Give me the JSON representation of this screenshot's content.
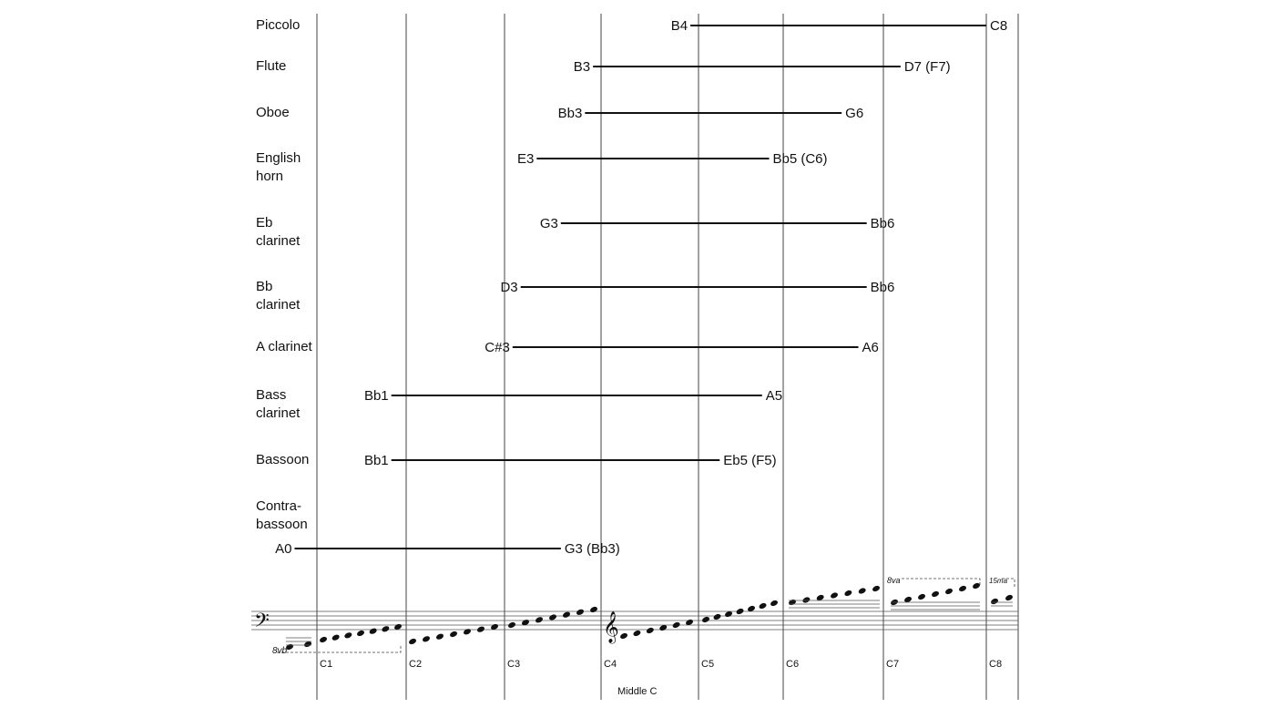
{
  "instruments": [
    {
      "name_lines": [
        "Piccolo"
      ],
      "low": "B4",
      "high": "C8"
    },
    {
      "name_lines": [
        "Flute"
      ],
      "low": "B3",
      "high": "D7 (F7)"
    },
    {
      "name_lines": [
        "Oboe"
      ],
      "low": "Bb3",
      "high": "G6"
    },
    {
      "name_lines": [
        "English",
        "horn"
      ],
      "low": "E3",
      "high": "Bb5 (C6)"
    },
    {
      "name_lines": [
        "Eb",
        "clarinet"
      ],
      "low": "G3",
      "high": "Bb6"
    },
    {
      "name_lines": [
        "Bb",
        "clarinet"
      ],
      "low": "D3",
      "high": "Bb6"
    },
    {
      "name_lines": [
        "A clarinet"
      ],
      "low": "C#3",
      "high": "A6"
    },
    {
      "name_lines": [
        "Bass",
        "clarinet"
      ],
      "low": "Bb1",
      "high": "A5"
    },
    {
      "name_lines": [
        "Bassoon"
      ],
      "low": "Bb1",
      "high": "Eb5 (F5)"
    },
    {
      "name_lines": [
        "Contra-",
        "bassoon"
      ],
      "low": "A0",
      "high": "G3 (Bb3)"
    }
  ],
  "octave_markers": [
    "C1",
    "C2",
    "C3",
    "C4",
    "C5",
    "C6",
    "C7",
    "C8"
  ],
  "middle_c_label": "Middle C",
  "ottava_marks": {
    "bass_8vb": "8vb",
    "treble_8va": "8va",
    "treble_15ma": "15ma"
  },
  "clefs": {
    "bass": "bass-clef-icon",
    "treble": "treble-clef-icon"
  }
}
